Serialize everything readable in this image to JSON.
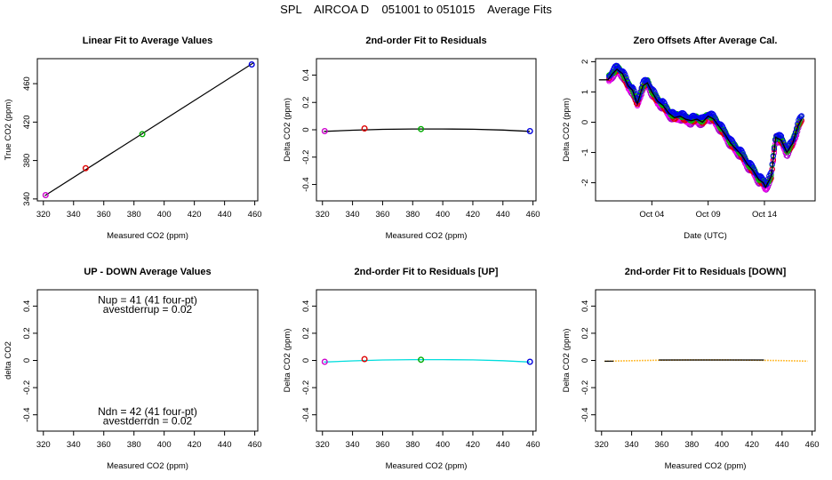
{
  "figure_title": "SPL    AIRCOA D    051001 to 051015    Average Fits",
  "chart_data": [
    {
      "id": "p1",
      "type": "scatter",
      "title": "Linear Fit to Average Values",
      "xlabel": "Measured CO2 (ppm)",
      "ylabel": "True CO2 (ppm)",
      "xlim": [
        316,
        462
      ],
      "ylim": [
        338,
        486
      ],
      "xticks": [
        320,
        340,
        360,
        380,
        400,
        420,
        440,
        460
      ],
      "yticks": [
        340,
        380,
        420,
        460
      ],
      "line": {
        "x": [
          321,
          459
        ],
        "y": [
          343.5,
          481.5
        ],
        "color": "#000000"
      },
      "points": [
        {
          "x": 321.5,
          "y": 344,
          "color": "#cc00cc"
        },
        {
          "x": 348,
          "y": 372,
          "color": "#dd0000"
        },
        {
          "x": 385.5,
          "y": 407.5,
          "color": "#00aa00"
        },
        {
          "x": 458,
          "y": 480,
          "color": "#0000dd"
        }
      ]
    },
    {
      "id": "p2",
      "type": "scatter",
      "title": "2nd-order Fit to Residuals",
      "xlabel": "Measured CO2 (ppm)",
      "ylabel": "Delta CO2 (ppm)",
      "xlim": [
        316,
        462
      ],
      "ylim": [
        -0.52,
        0.52
      ],
      "xticks": [
        320,
        340,
        360,
        380,
        400,
        420,
        440,
        460
      ],
      "yticks": [
        -0.4,
        -0.2,
        0.0,
        0.2,
        0.4
      ],
      "curve": {
        "x": [
          321,
          340,
          360,
          380,
          400,
          420,
          440,
          458
        ],
        "y": [
          -0.012,
          -0.003,
          0.003,
          0.006,
          0.006,
          0.004,
          -0.002,
          -0.012
        ],
        "color": "#000000"
      },
      "points": [
        {
          "x": 321.5,
          "y": -0.01,
          "color": "#cc00cc"
        },
        {
          "x": 348,
          "y": 0.01,
          "color": "#dd0000"
        },
        {
          "x": 385.5,
          "y": 0.005,
          "color": "#00aa00"
        },
        {
          "x": 458,
          "y": -0.01,
          "color": "#0000dd"
        }
      ]
    },
    {
      "id": "p3",
      "type": "line",
      "title": "Zero Offsets After Average Cal.",
      "xlabel": "Date (UTC)",
      "ylabel": "Delta CO2 (ppm)",
      "xlim": [
        0,
        19.5
      ],
      "ylim": [
        -2.6,
        2.1
      ],
      "xticks": [
        {
          "v": 5,
          "label": "Oct 04"
        },
        {
          "v": 10,
          "label": "Oct 09"
        },
        {
          "v": 15,
          "label": "Oct 14"
        }
      ],
      "yticks": [
        -2,
        -1,
        0,
        1,
        2
      ],
      "series": [
        {
          "name": "line",
          "color": "#000000",
          "x": [
            0.3,
            1.1,
            1.5,
            1.9,
            2.4,
            2.9,
            3.3,
            3.7,
            4.2,
            4.6,
            5.0,
            5.5,
            6.0,
            6.5,
            7.0,
            7.5,
            8.0,
            8.5,
            9.0,
            9.5,
            10.0,
            10.5,
            11.0,
            11.5,
            12.0,
            12.5,
            13.0,
            13.5,
            14.0,
            14.5,
            14.9,
            15.1,
            15.3,
            15.6,
            16.0,
            16.5,
            17.0,
            17.5,
            18.0,
            18.3
          ],
          "y": [
            1.4,
            1.4,
            1.6,
            1.75,
            1.6,
            1.2,
            1.05,
            0.6,
            1.2,
            1.3,
            1.0,
            0.7,
            0.55,
            0.3,
            0.15,
            0.2,
            0.1,
            0.05,
            0.1,
            0.0,
            0.2,
            0.1,
            -0.15,
            -0.4,
            -0.7,
            -0.9,
            -1.1,
            -1.4,
            -1.6,
            -1.9,
            -2.0,
            -2.15,
            -2.0,
            -1.8,
            -0.5,
            -0.6,
            -1.0,
            -0.7,
            -0.1,
            0.1
          ]
        }
      ],
      "scatter_series": [
        {
          "name": "purple",
          "color": "#aa00cc",
          "offset": -0.09
        },
        {
          "name": "magenta",
          "color": "#ee00ee",
          "offset": -0.04
        },
        {
          "name": "red",
          "color": "#dd0000",
          "offset": 0.0
        },
        {
          "name": "green",
          "color": "#00bb00",
          "offset": 0.05
        },
        {
          "name": "blue",
          "color": "#0000ee",
          "offset": 0.1
        }
      ]
    },
    {
      "id": "p4",
      "type": "scatter",
      "title": "UP - DOWN Average Values",
      "xlabel": "Measured CO2 (ppm)",
      "ylabel": "delta CO2",
      "xlim": [
        316,
        462
      ],
      "ylim": [
        -0.52,
        0.52
      ],
      "xticks": [
        320,
        340,
        360,
        380,
        400,
        420,
        440,
        460
      ],
      "yticks": [
        -0.4,
        -0.2,
        0.0,
        0.2,
        0.4
      ],
      "annotations": [
        {
          "text": "Nup = 41 (41 four-pt)",
          "x": 389,
          "y": 0.445
        },
        {
          "text": "avestderrup =  0.02",
          "x": 389,
          "y": 0.375
        },
        {
          "text": "Ndn = 42 (41 four-pt)",
          "x": 389,
          "y": -0.375
        },
        {
          "text": "avestderrdn =  0.02",
          "x": 389,
          "y": -0.445
        }
      ]
    },
    {
      "id": "p5",
      "type": "scatter",
      "title": "2nd-order Fit to Residuals [UP]",
      "xlabel": "Measured CO2 (ppm)",
      "ylabel": "Delta CO2 (ppm)",
      "xlim": [
        316,
        462
      ],
      "ylim": [
        -0.52,
        0.52
      ],
      "xticks": [
        320,
        340,
        360,
        380,
        400,
        420,
        440,
        460
      ],
      "yticks": [
        -0.4,
        -0.2,
        0.0,
        0.2,
        0.4
      ],
      "curve": {
        "x": [
          321,
          340,
          360,
          380,
          400,
          420,
          440,
          458
        ],
        "y": [
          -0.012,
          -0.003,
          0.003,
          0.006,
          0.006,
          0.004,
          -0.002,
          -0.012
        ],
        "color": "#00dddd"
      },
      "points": [
        {
          "x": 321.5,
          "y": -0.01,
          "color": "#cc00cc"
        },
        {
          "x": 348,
          "y": 0.01,
          "color": "#dd0000"
        },
        {
          "x": 385.5,
          "y": 0.005,
          "color": "#00aa00"
        },
        {
          "x": 458,
          "y": -0.01,
          "color": "#0000dd"
        }
      ]
    },
    {
      "id": "p6",
      "type": "line",
      "title": "2nd-order Fit to Residuals [DOWN]",
      "xlabel": "Measured CO2 (ppm)",
      "ylabel": "Delta CO2 (ppm)",
      "xlim": [
        316,
        462
      ],
      "ylim": [
        -0.52,
        0.52
      ],
      "xticks": [
        320,
        340,
        360,
        380,
        400,
        420,
        440,
        460
      ],
      "yticks": [
        -0.4,
        -0.2,
        0.0,
        0.2,
        0.4
      ],
      "curve": {
        "x": [
          322,
          340,
          360,
          380,
          400,
          420,
          440,
          457
        ],
        "y": [
          -0.006,
          -0.002,
          0.002,
          0.004,
          0.004,
          0.002,
          -0.001,
          -0.005
        ],
        "color": "#ffaa00",
        "dotted": true
      },
      "segments": [
        {
          "x": [
            322,
            328
          ],
          "y": [
            -0.006,
            -0.005
          ],
          "color": "#000000"
        },
        {
          "x": [
            358,
            428
          ],
          "y": [
            0.003,
            0.003
          ],
          "color": "#000000"
        }
      ]
    }
  ]
}
